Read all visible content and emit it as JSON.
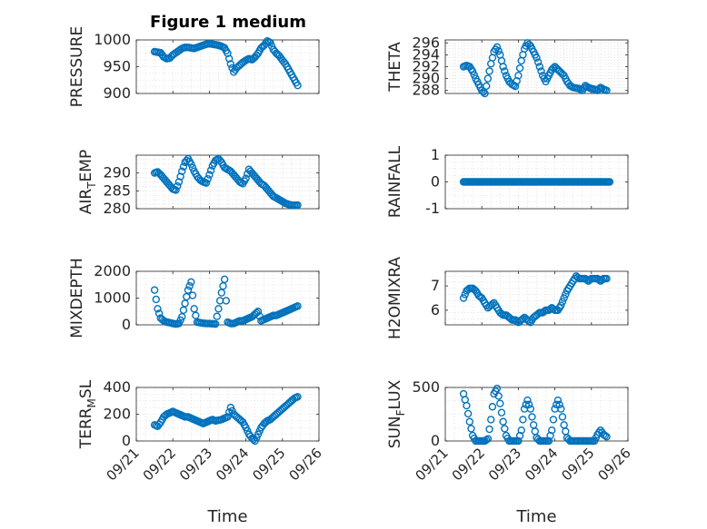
{
  "figure_title": "Figure 1 medium",
  "marker_color": "#0072bd",
  "chart_data": [
    {
      "type": "scatter",
      "id": "pressure",
      "ylabel": "PRESSURE",
      "ylabel_sub": "",
      "yticks": [
        900,
        950,
        1000
      ],
      "ylim": [
        900,
        1000
      ],
      "xticks": [],
      "xlabel": "",
      "x": [
        "09/21 12:00",
        "09/21 14:00",
        "09/21 16:00",
        "09/21 18:00",
        "09/21 20:00",
        "09/21 22:00",
        "09/22 00:00",
        "09/22 02:00",
        "09/22 04:00",
        "09/22 06:00",
        "09/22 08:00",
        "09/22 10:00",
        "09/22 12:00",
        "09/22 14:00",
        "09/22 16:00",
        "09/22 18:00",
        "09/22 20:00",
        "09/22 22:00",
        "09/23 00:00",
        "09/23 02:00",
        "09/23 04:00",
        "09/23 06:00",
        "09/23 08:00",
        "09/23 10:00",
        "09/23 12:00",
        "09/23 14:00",
        "09/23 16:00",
        "09/23 18:00",
        "09/23 20:00",
        "09/23 22:00",
        "09/24 00:00",
        "09/24 02:00",
        "09/24 04:00",
        "09/24 06:00",
        "09/24 08:00",
        "09/24 10:00",
        "09/24 12:00",
        "09/24 14:00",
        "09/24 16:00",
        "09/24 18:00",
        "09/24 20:00",
        "09/24 22:00",
        "09/25 00:00",
        "09/25 02:00",
        "09/25 04:00",
        "09/25 06:00",
        "09/25 08:00",
        "09/25 10:00"
      ],
      "y": [
        978,
        977,
        976,
        968,
        965,
        966,
        972,
        976,
        980,
        984,
        986,
        986,
        985,
        984,
        986,
        988,
        990,
        992,
        993,
        992,
        991,
        990,
        988,
        985,
        975,
        955,
        940,
        948,
        953,
        958,
        962,
        965,
        963,
        968,
        975,
        985,
        990,
        998,
        995,
        982,
        975,
        970,
        962,
        955,
        945,
        935,
        925,
        915
      ]
    },
    {
      "type": "scatter",
      "id": "theta",
      "ylabel": "THETA",
      "ylabel_sub": "",
      "yticks": [
        288,
        290,
        292,
        294,
        296
      ],
      "ylim": [
        287.5,
        296.5
      ],
      "xticks": [],
      "xlabel": "",
      "x": [
        "09/21 12:00",
        "09/21 14:00",
        "09/21 16:00",
        "09/21 18:00",
        "09/21 20:00",
        "09/21 22:00",
        "09/22 00:00",
        "09/22 02:00",
        "09/22 04:00",
        "09/22 06:00",
        "09/22 08:00",
        "09/22 10:00",
        "09/22 12:00",
        "09/22 14:00",
        "09/22 16:00",
        "09/22 18:00",
        "09/22 20:00",
        "09/22 22:00",
        "09/23 00:00",
        "09/23 02:00",
        "09/23 04:00",
        "09/23 06:00",
        "09/23 08:00",
        "09/23 10:00",
        "09/23 12:00",
        "09/23 14:00",
        "09/23 16:00",
        "09/23 18:00",
        "09/23 20:00",
        "09/23 22:00",
        "09/24 00:00",
        "09/24 02:00",
        "09/24 04:00",
        "09/24 06:00",
        "09/24 08:00",
        "09/24 10:00",
        "09/24 12:00",
        "09/24 14:00",
        "09/24 16:00",
        "09/24 18:00",
        "09/24 20:00",
        "09/24 22:00",
        "09/25 00:00",
        "09/25 02:00",
        "09/25 04:00",
        "09/25 06:00",
        "09/25 08:00",
        "09/25 10:00"
      ],
      "y": [
        292.0,
        292.2,
        292.0,
        291.2,
        290.0,
        289.0,
        288.0,
        287.5,
        290.0,
        292.5,
        294.5,
        295.3,
        294.0,
        292.0,
        290.5,
        289.5,
        289.0,
        288.7,
        290.5,
        293.0,
        295.0,
        296.0,
        295.5,
        294.5,
        293.5,
        292.0,
        290.5,
        289.5,
        290.5,
        291.5,
        292.0,
        291.5,
        291.0,
        290.5,
        289.5,
        288.8,
        288.5,
        288.4,
        288.3,
        288.0,
        288.8,
        288.5,
        288.3,
        288.2,
        288.0,
        288.5,
        288.2,
        288.0
      ]
    },
    {
      "type": "scatter",
      "id": "air_temp",
      "ylabel": "AIR",
      "ylabel_sub": "T",
      "ylabel_tail": "EMP",
      "yticks": [
        280,
        285,
        290
      ],
      "ylim": [
        280,
        295
      ],
      "xticks": [],
      "xlabel": "",
      "x": [
        "09/21 12:00",
        "09/21 14:00",
        "09/21 16:00",
        "09/21 18:00",
        "09/21 20:00",
        "09/21 22:00",
        "09/22 00:00",
        "09/22 02:00",
        "09/22 04:00",
        "09/22 06:00",
        "09/22 08:00",
        "09/22 10:00",
        "09/22 12:00",
        "09/22 14:00",
        "09/22 16:00",
        "09/22 18:00",
        "09/22 20:00",
        "09/22 22:00",
        "09/23 00:00",
        "09/23 02:00",
        "09/23 04:00",
        "09/23 06:00",
        "09/23 08:00",
        "09/23 10:00",
        "09/23 12:00",
        "09/23 14:00",
        "09/23 16:00",
        "09/23 18:00",
        "09/23 20:00",
        "09/23 22:00",
        "09/24 00:00",
        "09/24 02:00",
        "09/24 04:00",
        "09/24 06:00",
        "09/24 08:00",
        "09/24 10:00",
        "09/24 12:00",
        "09/24 14:00",
        "09/24 16:00",
        "09/24 18:00",
        "09/24 20:00",
        "09/24 22:00",
        "09/25 00:00",
        "09/25 02:00",
        "09/25 04:00",
        "09/25 06:00",
        "09/25 08:00",
        "09/25 10:00"
      ],
      "y": [
        290.0,
        290.3,
        289.5,
        288.5,
        287.5,
        286.5,
        285.5,
        285.2,
        287.5,
        290.5,
        293.0,
        294.0,
        292.5,
        290.5,
        289.0,
        288.0,
        287.5,
        287.2,
        289.5,
        292.0,
        293.5,
        294.0,
        293.0,
        291.5,
        291.0,
        290.5,
        289.5,
        288.5,
        287.5,
        287.0,
        288.5,
        291.0,
        290.0,
        289.0,
        288.0,
        287.0,
        286.5,
        285.5,
        284.5,
        283.5,
        283.0,
        282.5,
        282.0,
        281.5,
        281.2,
        281.0,
        281.0,
        281.0
      ]
    },
    {
      "type": "scatter",
      "id": "rainfall",
      "ylabel": "RAINFALL",
      "ylabel_sub": "",
      "yticks": [
        -1,
        0,
        1
      ],
      "ylim": [
        -1,
        1
      ],
      "xticks": [],
      "xlabel": "",
      "x": [
        "09/21 12:00",
        "09/25 12:00"
      ],
      "y": [
        0,
        0
      ],
      "constant_line": 0
    },
    {
      "type": "scatter",
      "id": "mixdepth",
      "ylabel": "MIXDEPTH",
      "ylabel_sub": "",
      "yticks": [
        0,
        1000,
        2000
      ],
      "ylim": [
        0,
        2000
      ],
      "xticks": [],
      "xlabel": "",
      "x": [
        "09/21 12:00",
        "09/21 14:00",
        "09/21 16:00",
        "09/21 18:00",
        "09/21 20:00",
        "09/21 22:00",
        "09/22 00:00",
        "09/22 02:00",
        "09/22 04:00",
        "09/22 06:00",
        "09/22 08:00",
        "09/22 10:00",
        "09/22 12:00",
        "09/22 14:00",
        "09/22 16:00",
        "09/22 18:00",
        "09/22 20:00",
        "09/22 22:00",
        "09/23 00:00",
        "09/23 02:00",
        "09/23 04:00",
        "09/23 06:00",
        "09/23 08:00",
        "09/23 10:00",
        "09/23 12:00",
        "09/23 14:00",
        "09/23 16:00",
        "09/23 18:00",
        "09/23 20:00",
        "09/23 22:00",
        "09/24 00:00",
        "09/24 02:00",
        "09/24 04:00",
        "09/24 06:00",
        "09/24 08:00",
        "09/24 10:00",
        "09/24 12:00",
        "09/24 14:00",
        "09/24 16:00",
        "09/24 18:00",
        "09/24 20:00",
        "09/24 22:00",
        "09/25 00:00",
        "09/25 02:00",
        "09/25 04:00",
        "09/25 06:00",
        "09/25 08:00",
        "09/25 10:00"
      ],
      "y": [
        1300,
        600,
        250,
        150,
        100,
        80,
        50,
        30,
        50,
        300,
        800,
        1300,
        1600,
        600,
        100,
        80,
        60,
        50,
        50,
        40,
        30,
        600,
        1200,
        1700,
        100,
        50,
        50,
        100,
        150,
        150,
        200,
        250,
        300,
        400,
        500,
        150,
        200,
        250,
        300,
        350,
        350,
        400,
        450,
        500,
        550,
        600,
        650,
        700
      ]
    },
    {
      "type": "scatter",
      "id": "h2omixra",
      "ylabel": "H2OMIXRA",
      "ylabel_sub": "",
      "yticks": [
        6,
        7
      ],
      "ylim": [
        5.4,
        7.6
      ],
      "xticks": [],
      "xlabel": "",
      "x": [
        "09/21 12:00",
        "09/21 14:00",
        "09/21 16:00",
        "09/21 18:00",
        "09/21 20:00",
        "09/21 22:00",
        "09/22 00:00",
        "09/22 02:00",
        "09/22 04:00",
        "09/22 06:00",
        "09/22 08:00",
        "09/22 10:00",
        "09/22 12:00",
        "09/22 14:00",
        "09/22 16:00",
        "09/22 18:00",
        "09/22 20:00",
        "09/22 22:00",
        "09/23 00:00",
        "09/23 02:00",
        "09/23 04:00",
        "09/23 06:00",
        "09/23 08:00",
        "09/23 10:00",
        "09/23 12:00",
        "09/23 14:00",
        "09/23 16:00",
        "09/23 18:00",
        "09/23 20:00",
        "09/23 22:00",
        "09/24 00:00",
        "09/24 02:00",
        "09/24 04:00",
        "09/24 06:00",
        "09/24 08:00",
        "09/24 10:00",
        "09/24 12:00",
        "09/24 14:00",
        "09/24 16:00",
        "09/24 18:00",
        "09/24 20:00",
        "09/24 22:00",
        "09/25 00:00",
        "09/25 02:00",
        "09/25 04:00",
        "09/25 06:00",
        "09/25 08:00",
        "09/25 10:00"
      ],
      "y": [
        6.5,
        6.8,
        6.9,
        6.9,
        6.8,
        6.6,
        6.5,
        6.3,
        6.1,
        6.2,
        6.3,
        6.1,
        5.9,
        5.8,
        5.8,
        5.7,
        5.6,
        5.6,
        5.5,
        5.6,
        5.7,
        5.6,
        5.5,
        5.7,
        5.8,
        5.9,
        5.9,
        6.0,
        6.0,
        6.1,
        6.0,
        6.0,
        6.2,
        6.5,
        6.8,
        7.0,
        7.2,
        7.4,
        7.3,
        7.3,
        7.3,
        7.2,
        7.3,
        7.3,
        7.3,
        7.2,
        7.3,
        7.3
      ]
    },
    {
      "type": "scatter",
      "id": "terr_msl",
      "ylabel": "TERR",
      "ylabel_sub": "M",
      "ylabel_tail": "SL",
      "yticks": [
        0,
        200,
        400
      ],
      "ylim": [
        0,
        400
      ],
      "xticks": [
        "09/21",
        "09/22",
        "09/23",
        "09/24",
        "09/25",
        "09/26"
      ],
      "xlabel": "Time",
      "x": [
        "09/21 12:00",
        "09/21 14:00",
        "09/21 16:00",
        "09/21 18:00",
        "09/21 20:00",
        "09/21 22:00",
        "09/22 00:00",
        "09/22 02:00",
        "09/22 04:00",
        "09/22 06:00",
        "09/22 08:00",
        "09/22 10:00",
        "09/22 12:00",
        "09/22 14:00",
        "09/22 16:00",
        "09/22 18:00",
        "09/22 20:00",
        "09/22 22:00",
        "09/23 00:00",
        "09/23 02:00",
        "09/23 04:00",
        "09/23 06:00",
        "09/23 08:00",
        "09/23 10:00",
        "09/23 12:00",
        "09/23 14:00",
        "09/23 16:00",
        "09/23 18:00",
        "09/23 20:00",
        "09/23 22:00",
        "09/24 00:00",
        "09/24 02:00",
        "09/24 04:00",
        "09/24 06:00",
        "09/24 08:00",
        "09/24 10:00",
        "09/24 12:00",
        "09/24 14:00",
        "09/24 16:00",
        "09/24 18:00",
        "09/24 20:00",
        "09/24 22:00",
        "09/25 00:00",
        "09/25 02:00",
        "09/25 04:00",
        "09/25 06:00",
        "09/25 08:00",
        "09/25 10:00"
      ],
      "y": [
        120,
        110,
        140,
        180,
        200,
        210,
        220,
        210,
        200,
        190,
        180,
        180,
        170,
        160,
        150,
        140,
        130,
        140,
        150,
        160,
        150,
        155,
        160,
        170,
        180,
        250,
        200,
        180,
        160,
        140,
        100,
        50,
        20,
        0,
        50,
        100,
        130,
        150,
        160,
        180,
        200,
        220,
        240,
        260,
        280,
        300,
        320,
        330
      ]
    },
    {
      "type": "scatter",
      "id": "sun_flux",
      "ylabel": "SUN",
      "ylabel_sub": "F",
      "ylabel_tail": "LUX",
      "yticks": [
        0,
        500
      ],
      "ylim": [
        0,
        500
      ],
      "xticks": [
        "09/21",
        "09/22",
        "09/23",
        "09/24",
        "09/25",
        "09/26"
      ],
      "xlabel": "Time",
      "x": [
        "09/21 12:00",
        "09/21 14:00",
        "09/21 16:00",
        "09/21 18:00",
        "09/21 20:00",
        "09/21 22:00",
        "09/22 00:00",
        "09/22 02:00",
        "09/22 04:00",
        "09/22 06:00",
        "09/22 08:00",
        "09/22 10:00",
        "09/22 12:00",
        "09/22 14:00",
        "09/22 16:00",
        "09/22 18:00",
        "09/22 20:00",
        "09/22 22:00",
        "09/23 00:00",
        "09/23 02:00",
        "09/23 04:00",
        "09/23 06:00",
        "09/23 08:00",
        "09/23 10:00",
        "09/23 12:00",
        "09/23 14:00",
        "09/23 16:00",
        "09/23 18:00",
        "09/23 20:00",
        "09/23 22:00",
        "09/24 00:00",
        "09/24 02:00",
        "09/24 04:00",
        "09/24 06:00",
        "09/24 08:00",
        "09/24 10:00",
        "09/24 12:00",
        "09/24 14:00",
        "09/24 16:00",
        "09/24 18:00",
        "09/24 20:00",
        "09/24 22:00",
        "09/25 00:00",
        "09/25 02:00",
        "09/25 04:00",
        "09/25 06:00",
        "09/25 08:00",
        "09/25 10:00"
      ],
      "y": [
        440,
        330,
        180,
        50,
        0,
        0,
        0,
        0,
        20,
        200,
        440,
        490,
        350,
        180,
        50,
        0,
        0,
        0,
        0,
        100,
        300,
        380,
        300,
        150,
        30,
        0,
        0,
        0,
        0,
        100,
        300,
        380,
        300,
        150,
        30,
        0,
        0,
        0,
        0,
        0,
        0,
        0,
        0,
        0,
        60,
        100,
        60,
        40
      ]
    }
  ]
}
